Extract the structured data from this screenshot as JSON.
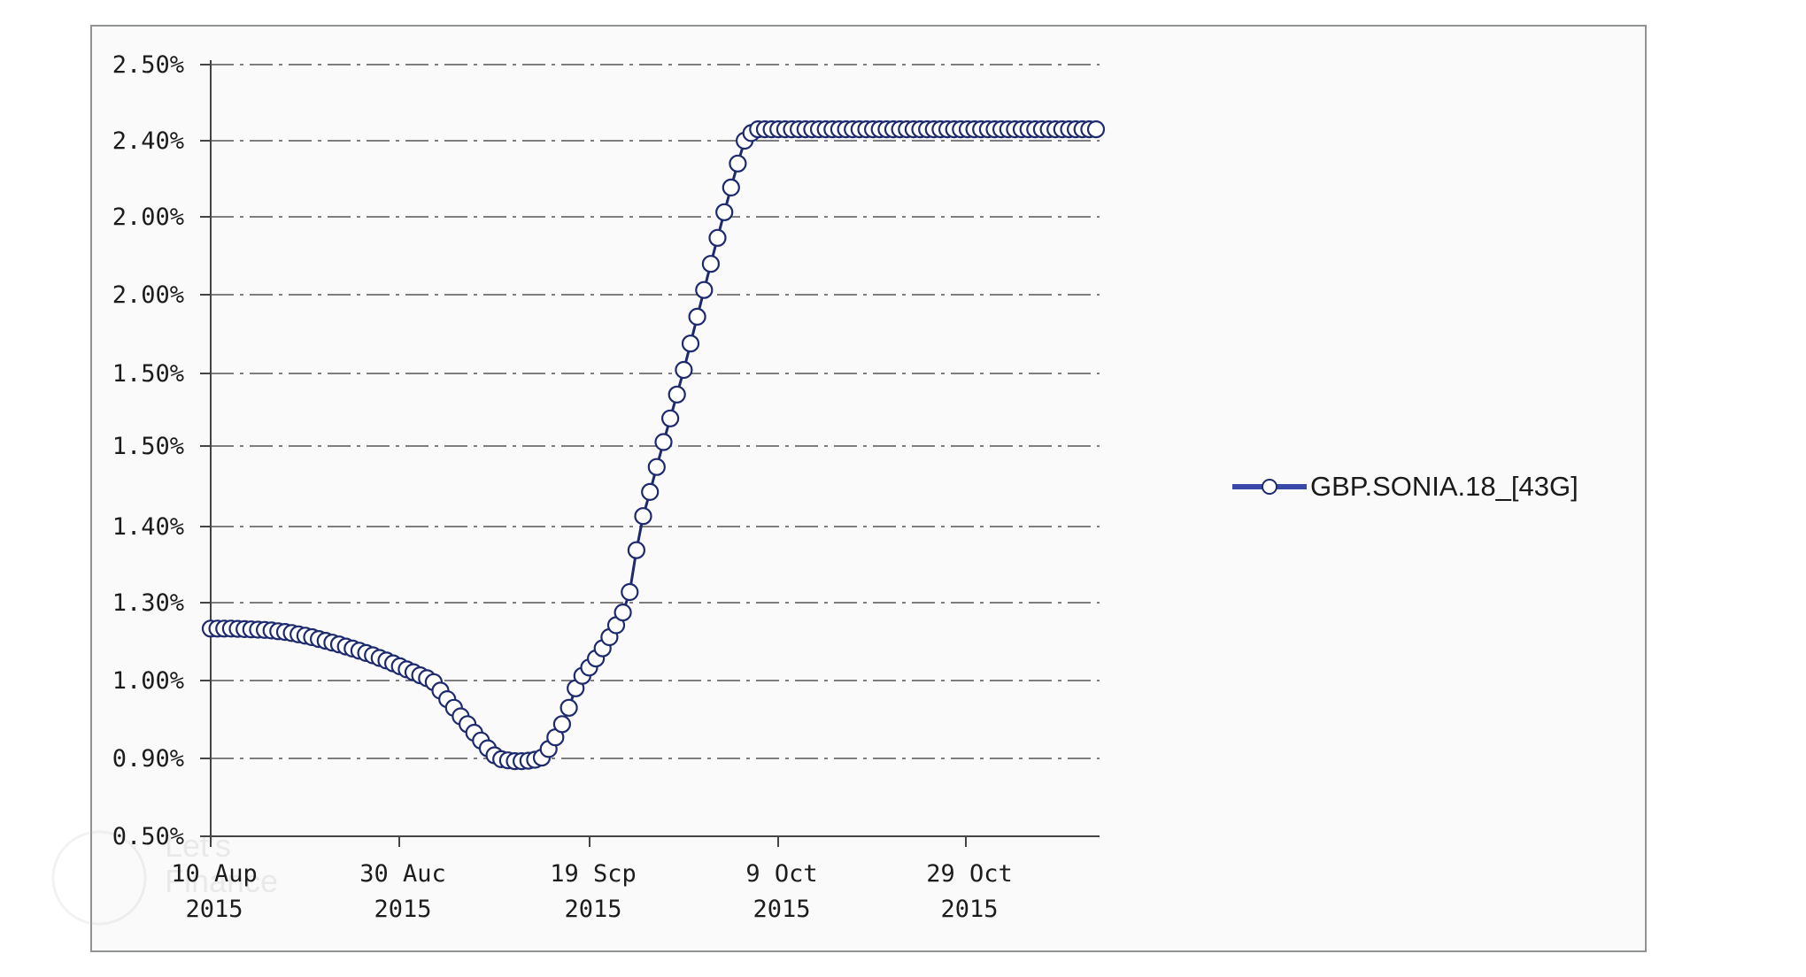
{
  "chart_data": {
    "type": "line",
    "title": "",
    "xlabel": "",
    "ylabel": "",
    "y_tick_labels": [
      "2.50%",
      "2.40%",
      "2.00%",
      "2.00%",
      "1.50%",
      "1.50%",
      "1.40%",
      "1.30%",
      "1.00%",
      "0.90%",
      "0.50%"
    ],
    "x_tick_labels": [
      [
        "10 Aup",
        "2015"
      ],
      [
        "30 Auc",
        "2015"
      ],
      [
        "19 Scp",
        "2015"
      ],
      [
        "9 Oct",
        "2015"
      ],
      [
        "29 Oct",
        "2015"
      ]
    ],
    "ylim": [
      0.5,
      2.5
    ],
    "grid": true,
    "legend_position": "right",
    "colors": {
      "line": "#1e2a6e",
      "legend_line": "#3a49a8",
      "marker_fill": "#ffffff",
      "grid": "#555555",
      "axis": "#444444"
    },
    "series": [
      {
        "name": "GBP.SONIA.18_[43G]",
        "values": [
          1.2,
          1.2,
          1.2,
          1.2,
          1.199,
          1.198,
          1.197,
          1.196,
          1.195,
          1.193,
          1.19,
          1.187,
          1.183,
          1.178,
          1.173,
          1.167,
          1.16,
          1.153,
          1.146,
          1.139,
          1.131,
          1.123,
          1.115,
          1.106,
          1.097,
          1.087,
          1.077,
          1.066,
          1.055,
          1.043,
          1.032,
          1.02,
          1.009,
          0.998,
          0.987,
          0.976,
          0.965,
          0.954,
          0.944,
          0.933,
          0.923,
          0.913,
          0.904,
          0.896,
          0.89,
          0.886,
          0.886,
          0.888,
          0.893,
          0.901,
          0.912,
          0.927,
          0.944,
          0.965,
          0.99,
          1.018,
          1.05,
          1.085,
          1.124,
          1.167,
          1.213,
          1.262,
          1.314,
          1.369,
          1.426,
          1.486,
          1.548,
          1.611,
          1.676,
          1.742,
          1.809,
          1.876,
          1.944,
          2.012,
          2.079,
          2.146,
          2.212,
          2.277,
          2.34,
          2.4,
          2.41,
          2.415,
          2.415,
          2.415,
          2.415,
          2.415,
          2.415,
          2.415,
          2.415,
          2.415,
          2.415,
          2.415,
          2.415,
          2.415,
          2.415,
          2.415,
          2.415,
          2.415,
          2.415,
          2.415,
          2.415,
          2.415,
          2.415,
          2.415,
          2.415,
          2.415,
          2.415,
          2.415,
          2.415,
          2.415,
          2.415,
          2.415,
          2.415,
          2.415,
          2.415,
          2.415,
          2.415,
          2.415,
          2.415,
          2.415,
          2.415,
          2.415,
          2.415,
          2.415,
          2.415,
          2.415,
          2.415,
          2.415,
          2.415,
          2.415,
          2.415,
          2.415
        ]
      }
    ],
    "markers": {
      "shape": "circle",
      "descent_sample_step": 1,
      "note_exclude": ""
    }
  },
  "legend": {
    "label": "GBP.SONIA.18_[43G]"
  },
  "watermark": {
    "text_line1": "Let's",
    "text_line2": "Finance"
  }
}
